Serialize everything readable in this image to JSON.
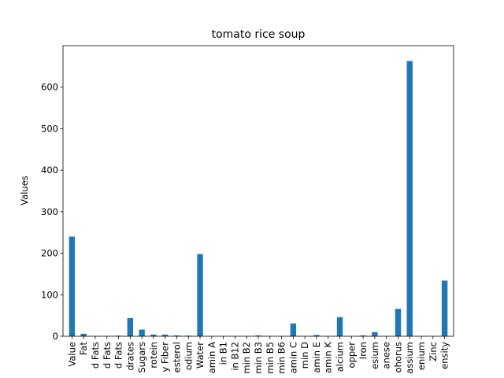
{
  "chart_data": {
    "type": "bar",
    "title": "tomato rice soup",
    "xlabel": "",
    "ylabel": "Values",
    "ylim": [
      0,
      700
    ],
    "yticks": [
      0,
      100,
      200,
      300,
      400,
      500,
      600
    ],
    "grid": false,
    "legend": "none",
    "categories": [
      "Value",
      "Fat",
      "d Fats",
      "d Fats",
      "d Fats",
      "drates",
      "Sugars",
      "rotein",
      "y Fiber",
      "esterol",
      "odium",
      "Water",
      "amin A",
      "in B1",
      "in B12",
      "min B2",
      "min B3",
      "min B5",
      "min B6",
      "amin C",
      "min D",
      "amin E",
      "amin K",
      "alcium",
      "opper",
      "Iron",
      "esium",
      "anese",
      "ohorus",
      "assium",
      "enium",
      "Zinc",
      "ensity"
    ],
    "values": [
      240,
      6,
      0.5,
      0.5,
      1.5,
      44,
      16,
      4,
      4,
      2,
      1.5,
      198,
      0.3,
      0.2,
      0.2,
      0.2,
      2,
      0.5,
      0.3,
      31,
      0.2,
      3,
      0.3,
      46,
      0.2,
      2,
      10,
      0.3,
      66,
      663,
      0.2,
      0.5,
      134
    ],
    "bar_color": "#1f77b4"
  }
}
